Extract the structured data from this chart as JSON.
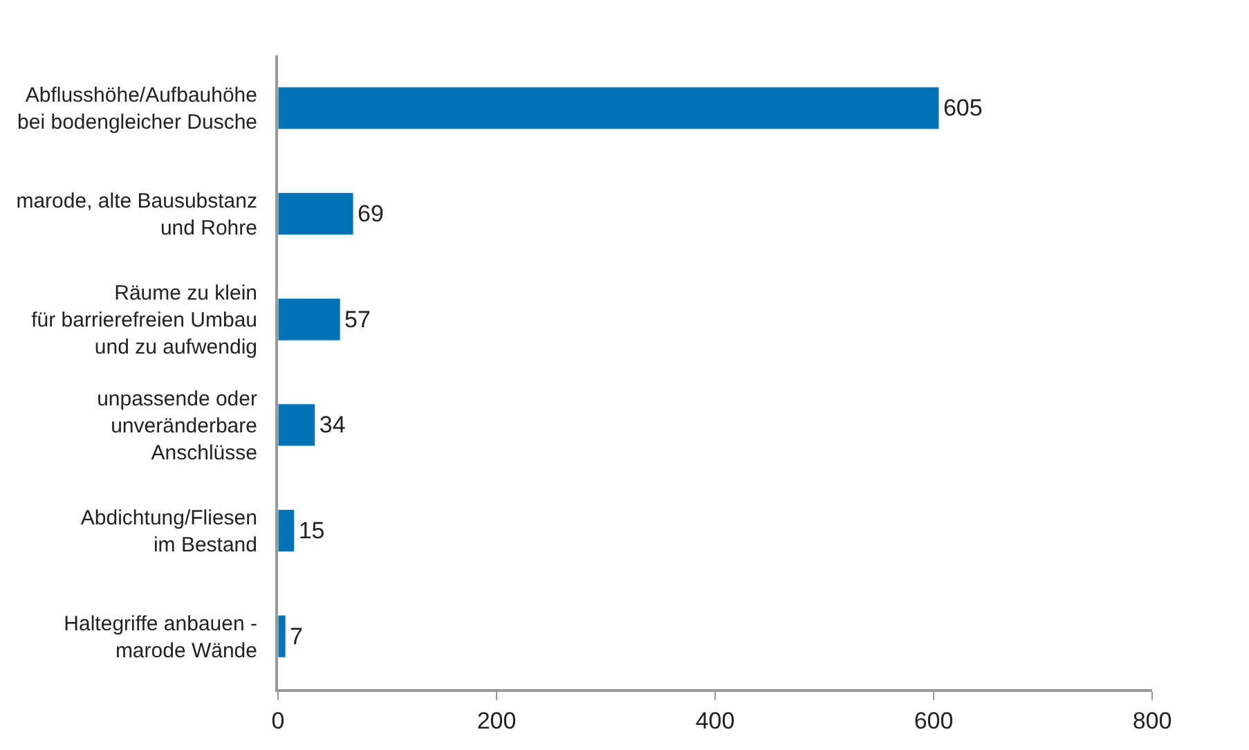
{
  "chart_data": {
    "type": "bar",
    "orientation": "horizontal",
    "categories": [
      "Abflusshöhe/Aufbauhöhe\nbei bodengleicher Dusche",
      "marode, alte Bausubstanz\nund Rohre",
      "Räume zu klein\nfür barrierefreien Umbau\nund zu aufwendig",
      "unpassende oder\nunveränderbare\nAnschlüsse",
      "Abdichtung/Fliesen\nim Bestand",
      "Haltegriffe anbauen -\nmarode Wände"
    ],
    "values": [
      605,
      69,
      57,
      34,
      15,
      7
    ],
    "color": "#0072b5",
    "xlim": [
      0,
      800
    ],
    "xticks": [
      0,
      200,
      400,
      600,
      800
    ],
    "data_labels": true
  }
}
